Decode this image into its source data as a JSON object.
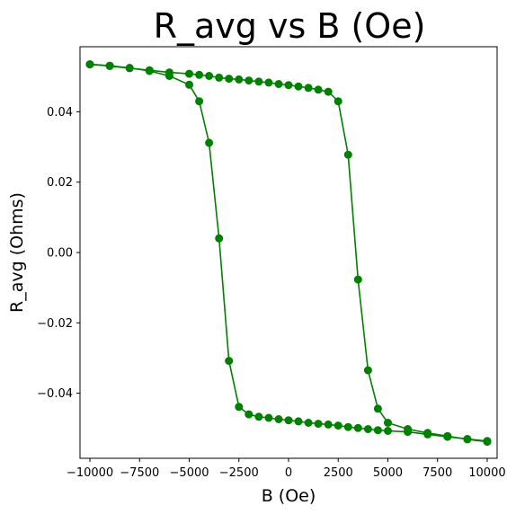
{
  "chart_data": {
    "type": "line",
    "title": "R_avg vs B (Oe)",
    "xlabel": "B (Oe)",
    "ylabel": "R_avg (Ohms)",
    "xlim": [
      -10500,
      10500
    ],
    "ylim": [
      -0.0585,
      0.0585
    ],
    "x_ticks": [
      -10000,
      -7500,
      -5000,
      -2500,
      0,
      2500,
      5000,
      7500,
      10000
    ],
    "x_tick_labels": [
      "−10000",
      "−7500",
      "−5000",
      "−2500",
      "0",
      "2500",
      "5000",
      "7500",
      "10000"
    ],
    "y_ticks": [
      -0.04,
      -0.02,
      0.0,
      0.02,
      0.04
    ],
    "y_tick_labels": [
      "−0.04",
      "−0.02",
      "0.00",
      "0.02",
      "0.04"
    ],
    "grid": false,
    "legend": "none",
    "color": "#008000",
    "series": [
      {
        "x": [
          -10000,
          -9000,
          -8000,
          -7000,
          -6000,
          -5000,
          -4500,
          -4000,
          -3500,
          -3000,
          -2500,
          -2000,
          -1500,
          -1000,
          -500,
          0,
          500,
          1000,
          1500,
          2000,
          2500,
          3000,
          3500,
          4000,
          4500,
          5000,
          6000,
          7000,
          8000,
          9000,
          10000
        ],
        "y": [
          0.0535,
          0.0531,
          0.0525,
          0.0516,
          0.0502,
          0.0477,
          0.043,
          0.0312,
          0.004,
          -0.0308,
          -0.0439,
          -0.046,
          -0.0467,
          -0.047,
          -0.0474,
          -0.0477,
          -0.048,
          -0.0484,
          -0.0487,
          -0.0489,
          -0.0492,
          -0.0496,
          -0.0499,
          -0.0502,
          -0.0505,
          -0.0507,
          -0.051,
          -0.0517,
          -0.0524,
          -0.053,
          -0.0536
        ]
      },
      {
        "x": [
          10000,
          9000,
          8000,
          7000,
          6000,
          5000,
          4500,
          4000,
          3500,
          3000,
          2500,
          2000,
          1500,
          1000,
          500,
          0,
          -500,
          -1000,
          -1500,
          -2000,
          -2500,
          -3000,
          -3500,
          -4000,
          -4500,
          -5000,
          -6000,
          -7000,
          -8000,
          -9000,
          -10000
        ],
        "y": [
          -0.0538,
          -0.0531,
          -0.0522,
          -0.0513,
          -0.0502,
          -0.0484,
          -0.0444,
          -0.0335,
          -0.0077,
          0.0278,
          0.043,
          0.0457,
          0.0463,
          0.0468,
          0.0472,
          0.0476,
          0.0479,
          0.0483,
          0.0486,
          0.0489,
          0.0492,
          0.0494,
          0.0497,
          0.0502,
          0.0505,
          0.0508,
          0.0512,
          0.0518,
          0.0524,
          0.053,
          0.0535
        ]
      }
    ]
  }
}
